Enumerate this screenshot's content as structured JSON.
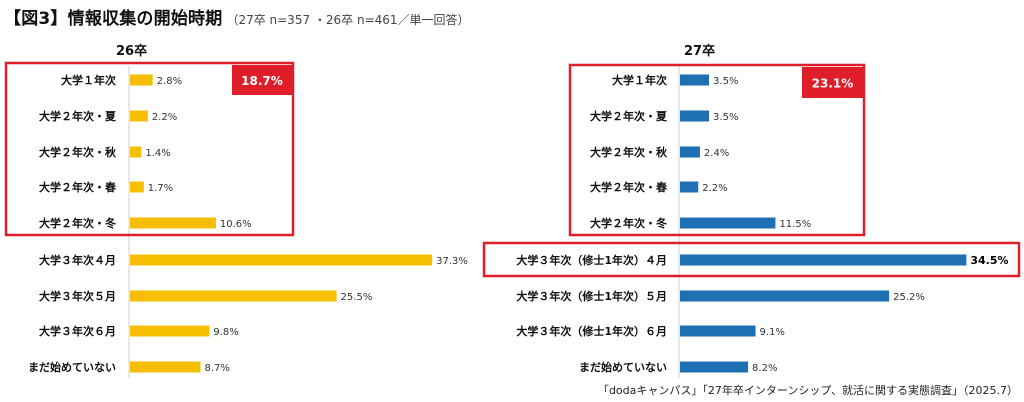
{
  "header": {
    "title": "【図3】情報収集の開始時期",
    "subtitle": "（27卒 n=357 ・26卒 n=461／単一回答）"
  },
  "source": "「dodaキャンパス」「27年卒インターンシップ、就活に関する実態調査」（2025.7）",
  "colors": {
    "left_bar": "#F5BE00",
    "right_bar": "#1F6FB4",
    "highlight": "#E01E2A"
  },
  "chart_data": [
    {
      "type": "bar",
      "orientation": "horizontal",
      "title": "26卒",
      "categories": [
        "大学１年次",
        "大学２年次・夏",
        "大学２年次・秋",
        "大学２年次・春",
        "大学２年次・冬",
        "大学３年次４月",
        "大学３年次５月",
        "大学３年次６月",
        "まだ始めていない"
      ],
      "values": [
        2.8,
        2.2,
        1.4,
        1.7,
        10.6,
        37.3,
        25.5,
        9.8,
        8.7
      ],
      "value_labels": [
        "2.8%",
        "2.2%",
        "1.4%",
        "1.7%",
        "10.6%",
        "37.3%",
        "25.5%",
        "9.8%",
        "8.7%"
      ],
      "highlight_group": {
        "categories": [
          0,
          1,
          2,
          3,
          4
        ],
        "total_label": "18.7%"
      }
    },
    {
      "type": "bar",
      "orientation": "horizontal",
      "title": "27卒",
      "categories": [
        "大学１年次",
        "大学２年次・夏",
        "大学２年次・秋",
        "大学２年次・春",
        "大学２年次・冬",
        "大学３年次（修士1年次）４月",
        "大学３年次（修士1年次）５月",
        "大学３年次（修士1年次）６月",
        "まだ始めていない"
      ],
      "values": [
        3.5,
        3.5,
        2.4,
        2.2,
        11.5,
        34.5,
        25.2,
        9.1,
        8.2
      ],
      "value_labels": [
        "3.5%",
        "3.5%",
        "2.4%",
        "2.2%",
        "11.5%",
        "34.5%",
        "25.2%",
        "9.1%",
        "8.2%"
      ],
      "highlight_group": {
        "categories": [
          0,
          1,
          2,
          3,
          4
        ],
        "total_label": "23.1%"
      },
      "highlight_single": {
        "category": 5
      }
    }
  ]
}
